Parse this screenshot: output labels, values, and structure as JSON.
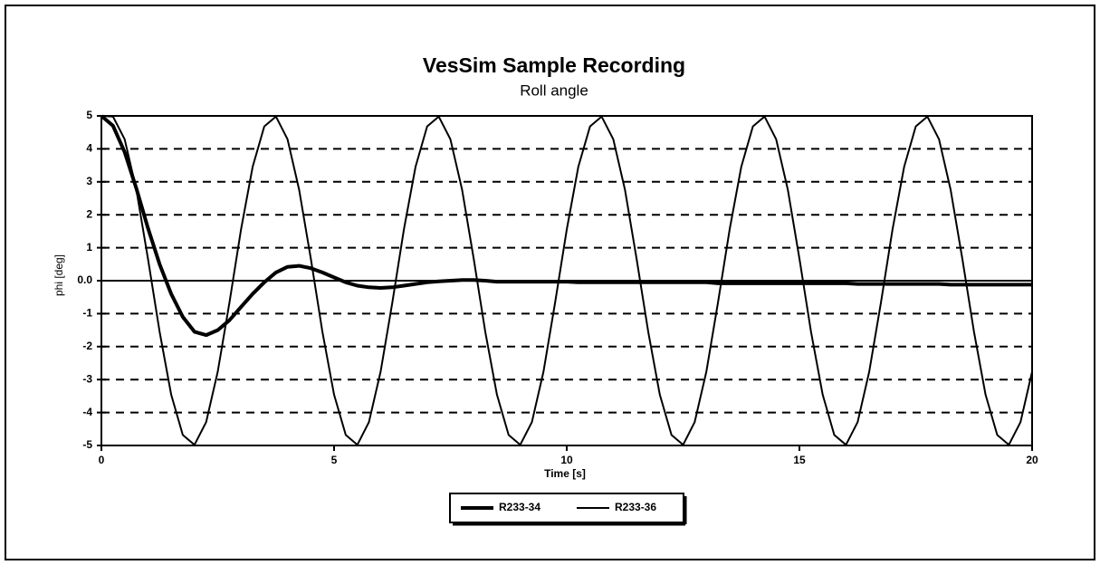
{
  "chart_data": {
    "type": "line",
    "title": "VesSim Sample Recording",
    "subtitle": "Roll angle",
    "x_label": "Time [s]",
    "y_label": "phi [deg]",
    "x": [
      0,
      0.25,
      0.5,
      0.75,
      1,
      1.25,
      1.5,
      1.75,
      2,
      2.25,
      2.5,
      2.75,
      3,
      3.25,
      3.5,
      3.75,
      4,
      4.25,
      4.5,
      4.75,
      5,
      5.25,
      5.5,
      5.75,
      6,
      6.25,
      6.5,
      6.75,
      7,
      7.25,
      7.5,
      7.75,
      8,
      8.25,
      8.5,
      8.75,
      9,
      9.25,
      9.5,
      9.75,
      10,
      10.25,
      10.5,
      10.75,
      11,
      11.25,
      11.5,
      11.75,
      12,
      12.25,
      12.5,
      12.75,
      13,
      13.25,
      13.5,
      13.75,
      14,
      14.25,
      14.5,
      14.75,
      15,
      15.25,
      15.5,
      15.75,
      16,
      16.25,
      16.5,
      16.75,
      17,
      17.25,
      17.5,
      17.75,
      18,
      18.25,
      18.5,
      18.75,
      19,
      19.25,
      19.5,
      19.75,
      20
    ],
    "series": [
      {
        "name": "R233-34",
        "color": "#000000",
        "width": 4,
        "values": [
          5,
          4.7,
          3.9,
          2.8,
          1.6,
          0.5,
          -0.4,
          -1.1,
          -1.55,
          -1.65,
          -1.5,
          -1.2,
          -0.8,
          -0.4,
          -0.05,
          0.25,
          0.42,
          0.45,
          0.38,
          0.25,
          0.1,
          -0.05,
          -0.15,
          -0.2,
          -0.22,
          -0.2,
          -0.15,
          -0.1,
          -0.05,
          -0.02,
          0,
          0.02,
          0.02,
          0,
          -0.03,
          -0.03,
          -0.03,
          -0.03,
          -0.03,
          -0.03,
          -0.03,
          -0.05,
          -0.05,
          -0.05,
          -0.05,
          -0.05,
          -0.05,
          -0.05,
          -0.05,
          -0.05,
          -0.05,
          -0.05,
          -0.05,
          -0.08,
          -0.08,
          -0.08,
          -0.08,
          -0.08,
          -0.08,
          -0.08,
          -0.08,
          -0.08,
          -0.08,
          -0.08,
          -0.08,
          -0.1,
          -0.1,
          -0.1,
          -0.1,
          -0.1,
          -0.1,
          -0.1,
          -0.1,
          -0.12,
          -0.12,
          -0.12,
          -0.12,
          -0.12,
          -0.12,
          -0.12,
          -0.12
        ]
      },
      {
        "name": "R233-36",
        "color": "#000000",
        "width": 2,
        "values": [
          5,
          4.98,
          4.29,
          2.76,
          0.67,
          -1.55,
          -3.46,
          -4.68,
          -4.98,
          -4.29,
          -2.76,
          -0.67,
          1.55,
          3.46,
          4.68,
          4.98,
          4.29,
          2.76,
          0.67,
          -1.55,
          -3.46,
          -4.68,
          -4.98,
          -4.29,
          -2.76,
          -0.67,
          1.55,
          3.46,
          4.68,
          4.98,
          4.29,
          2.76,
          0.67,
          -1.55,
          -3.46,
          -4.68,
          -4.98,
          -4.29,
          -2.76,
          -0.67,
          1.55,
          3.46,
          4.68,
          4.98,
          4.29,
          2.76,
          0.67,
          -1.55,
          -3.46,
          -4.68,
          -4.98,
          -4.29,
          -2.76,
          -0.67,
          1.55,
          3.46,
          4.68,
          4.98,
          4.29,
          2.76,
          0.67,
          -1.55,
          -3.46,
          -4.68,
          -4.98,
          -4.29,
          -2.76,
          -0.67,
          1.55,
          3.46,
          4.68,
          4.98,
          4.29,
          2.76,
          0.67,
          -1.55,
          -3.46,
          -4.68,
          -4.98,
          -4.29,
          -2.76
        ]
      }
    ],
    "xlim": [
      0,
      20
    ],
    "xticks": [
      0,
      5,
      10,
      15,
      20
    ],
    "ylim": [
      -5,
      5
    ],
    "yticks": [
      -5,
      -4,
      -3,
      -2,
      -1,
      {
        "value": 0,
        "label": "0.0"
      },
      1,
      2,
      3,
      4,
      5
    ],
    "grid": true,
    "legend": "bottom"
  }
}
